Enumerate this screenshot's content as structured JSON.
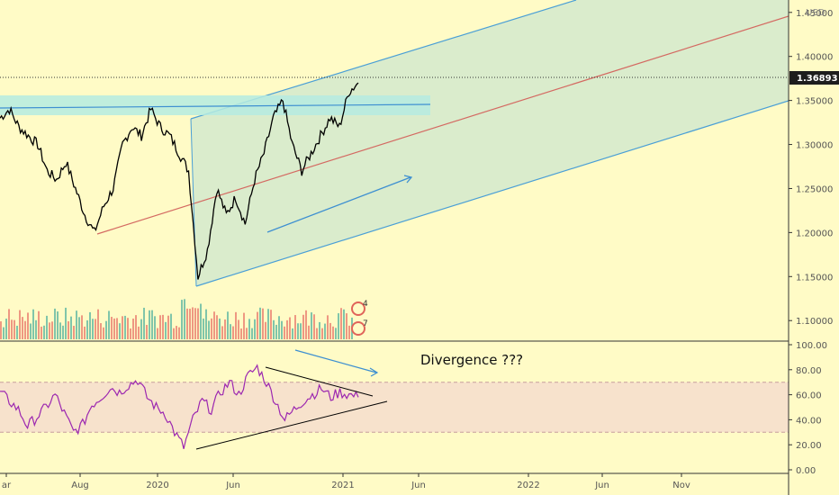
{
  "chart_data": [
    {
      "type": "line",
      "panel": "price",
      "axis_unit": "USD",
      "x_ticks": [
        "ar",
        "Aug",
        "2020",
        "Jun",
        "2021",
        "Jun",
        "2022",
        "Jun",
        "Nov"
      ],
      "y_ticks": [
        "1.45000",
        "1.40000",
        "1.35000",
        "1.30000",
        "1.25000",
        "1.20000",
        "1.15000",
        "1.10000"
      ],
      "ylim": [
        1.09,
        1.46
      ],
      "last_price": "1.36893",
      "last_price_value": 1.36893,
      "series": [
        {
          "values": [
            1.33,
            1.34,
            1.32,
            1.31,
            1.3,
            1.27,
            1.26,
            1.28,
            1.25,
            1.22,
            1.2,
            1.23,
            1.25,
            1.3,
            1.32,
            1.31,
            1.34,
            1.32,
            1.31,
            1.29,
            1.27,
            1.15,
            1.18,
            1.25,
            1.22,
            1.24,
            1.21,
            1.26,
            1.29,
            1.33,
            1.35,
            1.3,
            1.27,
            1.29,
            1.31,
            1.33,
            1.32,
            1.36,
            1.37
          ]
        }
      ],
      "colors": {
        "price": "#000000",
        "channel_fill": "#d3e9cd",
        "channel_edge": "#4a9fd6",
        "median": "#d46a62",
        "zone": "#bdeee0"
      }
    },
    {
      "type": "line",
      "panel": "oscillator",
      "y_ticks": [
        "100.00",
        "80.00",
        "60.00",
        "40.00",
        "20.00",
        "0.00"
      ],
      "ylim": [
        0,
        100
      ],
      "band": [
        30,
        70
      ],
      "annotation": "Divergence ???",
      "series": [
        {
          "values": [
            62,
            55,
            48,
            35,
            42,
            50,
            60,
            45,
            30,
            36,
            52,
            58,
            66,
            62,
            68,
            72,
            58,
            50,
            45,
            30,
            18,
            40,
            55,
            48,
            62,
            70,
            60,
            75,
            82,
            70,
            55,
            40,
            48,
            55,
            60,
            65,
            58,
            62,
            60,
            58
          ]
        }
      ],
      "colors": {
        "line": "#9c27b0",
        "band": "#f7e2cc"
      }
    }
  ],
  "volume_badges": [
    "4",
    "7"
  ]
}
